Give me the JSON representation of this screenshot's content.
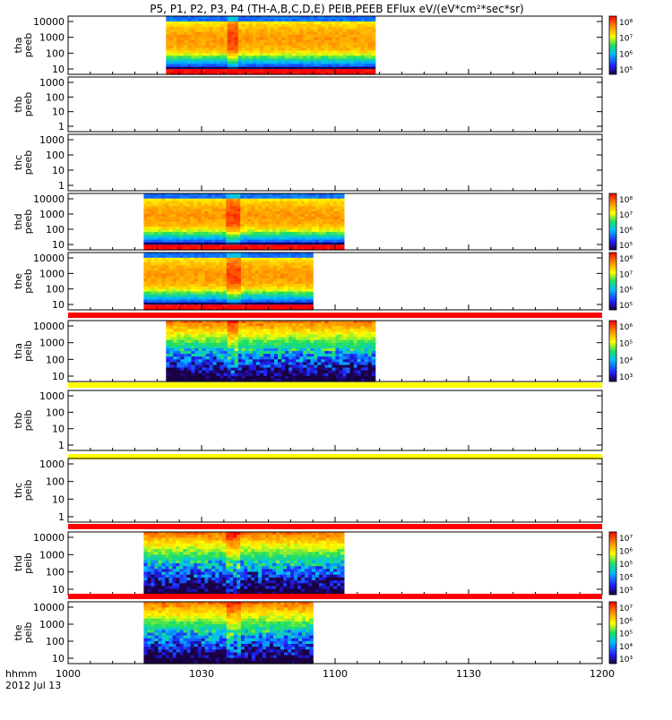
{
  "title": "P5, P1, P2, P3, P4 (TH-A,B,C,D,E) PEIB,PEEB EFlux eV/(eV*cm²*sec*sr)",
  "time_axis": {
    "label_line1": "hhmm",
    "label_line2": "2012 Jul 13",
    "ticks": [
      "1000",
      "1030",
      "1100",
      "1130",
      "1200"
    ],
    "range_minutes": [
      0,
      120
    ]
  },
  "chart_data": [
    {
      "type": "heatmap",
      "probe": "tha",
      "product": "peeb",
      "ylabel": [
        "tha",
        "peeb"
      ],
      "y_ticks": [
        "10000",
        "1000",
        "100",
        "10"
      ],
      "data_start_min": 22,
      "data_end_min": 69,
      "scale": "electron",
      "colorbar_ticks": [
        "10⁸",
        "10⁷",
        "10⁶",
        "10⁵"
      ],
      "spike_min": 37,
      "top_flag": "none"
    },
    {
      "type": "heatmap",
      "probe": "thb",
      "product": "peeb",
      "ylabel": [
        "thb",
        "peeb"
      ],
      "y_ticks": [
        "1000",
        "100",
        "10",
        "1"
      ],
      "data_start_min": null,
      "data_end_min": null,
      "scale": "none",
      "colorbar_ticks": [],
      "spike_min": null,
      "top_flag": "none"
    },
    {
      "type": "heatmap",
      "probe": "thc",
      "product": "peeb",
      "ylabel": [
        "thc",
        "peeb"
      ],
      "y_ticks": [
        "1000",
        "100",
        "10",
        "1"
      ],
      "data_start_min": null,
      "data_end_min": null,
      "scale": "none",
      "colorbar_ticks": [],
      "spike_min": null,
      "top_flag": "none"
    },
    {
      "type": "heatmap",
      "probe": "thd",
      "product": "peeb",
      "ylabel": [
        "thd",
        "peeb"
      ],
      "y_ticks": [
        "10000",
        "1000",
        "100",
        "10"
      ],
      "data_start_min": 17,
      "data_end_min": 62,
      "scale": "electron",
      "colorbar_ticks": [
        "10⁸",
        "10⁷",
        "10⁶",
        "10⁵"
      ],
      "spike_min": 37,
      "top_flag": "none"
    },
    {
      "type": "heatmap",
      "probe": "the",
      "product": "peeb",
      "ylabel": [
        "the",
        "peeb"
      ],
      "y_ticks": [
        "10000",
        "1000",
        "100",
        "10"
      ],
      "data_start_min": 17,
      "data_end_min": 55,
      "scale": "electron",
      "colorbar_ticks": [
        "10⁸",
        "10⁷",
        "10⁶",
        "10⁵"
      ],
      "spike_min": 37,
      "top_flag": "none"
    },
    {
      "type": "heatmap",
      "probe": "tha",
      "product": "peib",
      "ylabel": [
        "tha",
        "peib"
      ],
      "y_ticks": [
        "10000",
        "1000",
        "100",
        "10"
      ],
      "data_start_min": 22,
      "data_end_min": 69,
      "scale": "ion",
      "colorbar_ticks": [
        "10⁶",
        "10⁵",
        "10⁴",
        "10³"
      ],
      "spike_min": 37,
      "top_flag": "red"
    },
    {
      "type": "heatmap",
      "probe": "thb",
      "product": "peib",
      "ylabel": [
        "thb",
        "peib"
      ],
      "y_ticks": [
        "1000",
        "100",
        "10",
        "1"
      ],
      "data_start_min": null,
      "data_end_min": null,
      "scale": "none",
      "colorbar_ticks": [],
      "spike_min": null,
      "top_flag": "yellow"
    },
    {
      "type": "heatmap",
      "probe": "thc",
      "product": "peib",
      "ylabel": [
        "thc",
        "peib"
      ],
      "y_ticks": [
        "1000",
        "100",
        "10",
        "1"
      ],
      "data_start_min": null,
      "data_end_min": null,
      "scale": "none",
      "colorbar_ticks": [],
      "spike_min": null,
      "top_flag": "yellow"
    },
    {
      "type": "heatmap",
      "probe": "thd",
      "product": "peib",
      "ylabel": [
        "thd",
        "peib"
      ],
      "y_ticks": [
        "10000",
        "1000",
        "100",
        "10"
      ],
      "data_start_min": 17,
      "data_end_min": 62,
      "scale": "ion",
      "colorbar_ticks": [
        "10⁷",
        "10⁶",
        "10⁵",
        "10⁴",
        "10³"
      ],
      "spike_min": 37,
      "top_flag": "red"
    },
    {
      "type": "heatmap",
      "probe": "the",
      "product": "peib",
      "ylabel": [
        "the",
        "peib"
      ],
      "y_ticks": [
        "10000",
        "1000",
        "100",
        "10"
      ],
      "data_start_min": 17,
      "data_end_min": 55,
      "scale": "ion",
      "colorbar_ticks": [
        "10⁷",
        "10⁶",
        "10⁵",
        "10⁴",
        "10³"
      ],
      "spike_min": 37,
      "top_flag": "red"
    }
  ]
}
